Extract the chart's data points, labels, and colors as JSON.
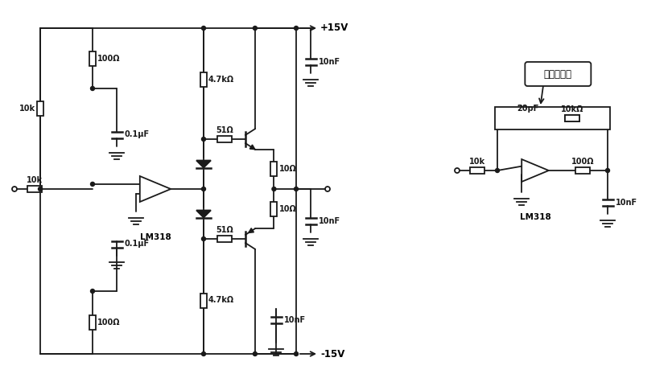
{
  "bg_color": "#ffffff",
  "line_color": "#1a1a1a",
  "line_width": 1.3,
  "figsize": [
    8.35,
    4.7
  ],
  "dpi": 100,
  "labels": {
    "plus15v": "+15V",
    "minus15v": "-15V",
    "lm318": "LM318",
    "r10k_1": "10k",
    "r10k_2": "10k",
    "r100_1": "100Ω",
    "r100_2": "100Ω",
    "r4k7_1": "4.7kΩ",
    "r4k7_2": "4.7kΩ",
    "r51_1": "51Ω",
    "r51_2": "51Ω",
    "r10_1": "10Ω",
    "r10_2": "10Ω",
    "c01uf_1": "0.1μF",
    "c01uf_2": "0.1μF",
    "c10nf_1": "10nF",
    "c10nf_2": "10nF",
    "c10nf_3": "10nF",
    "r10k_right": "10k",
    "r100_right": "100Ω",
    "c20pf": "20pF",
    "c10k_fb": "10kΩ",
    "c10nf_right": "10nF",
    "lm318_right": "LM318",
    "feedback_label": "负反馈电路"
  }
}
